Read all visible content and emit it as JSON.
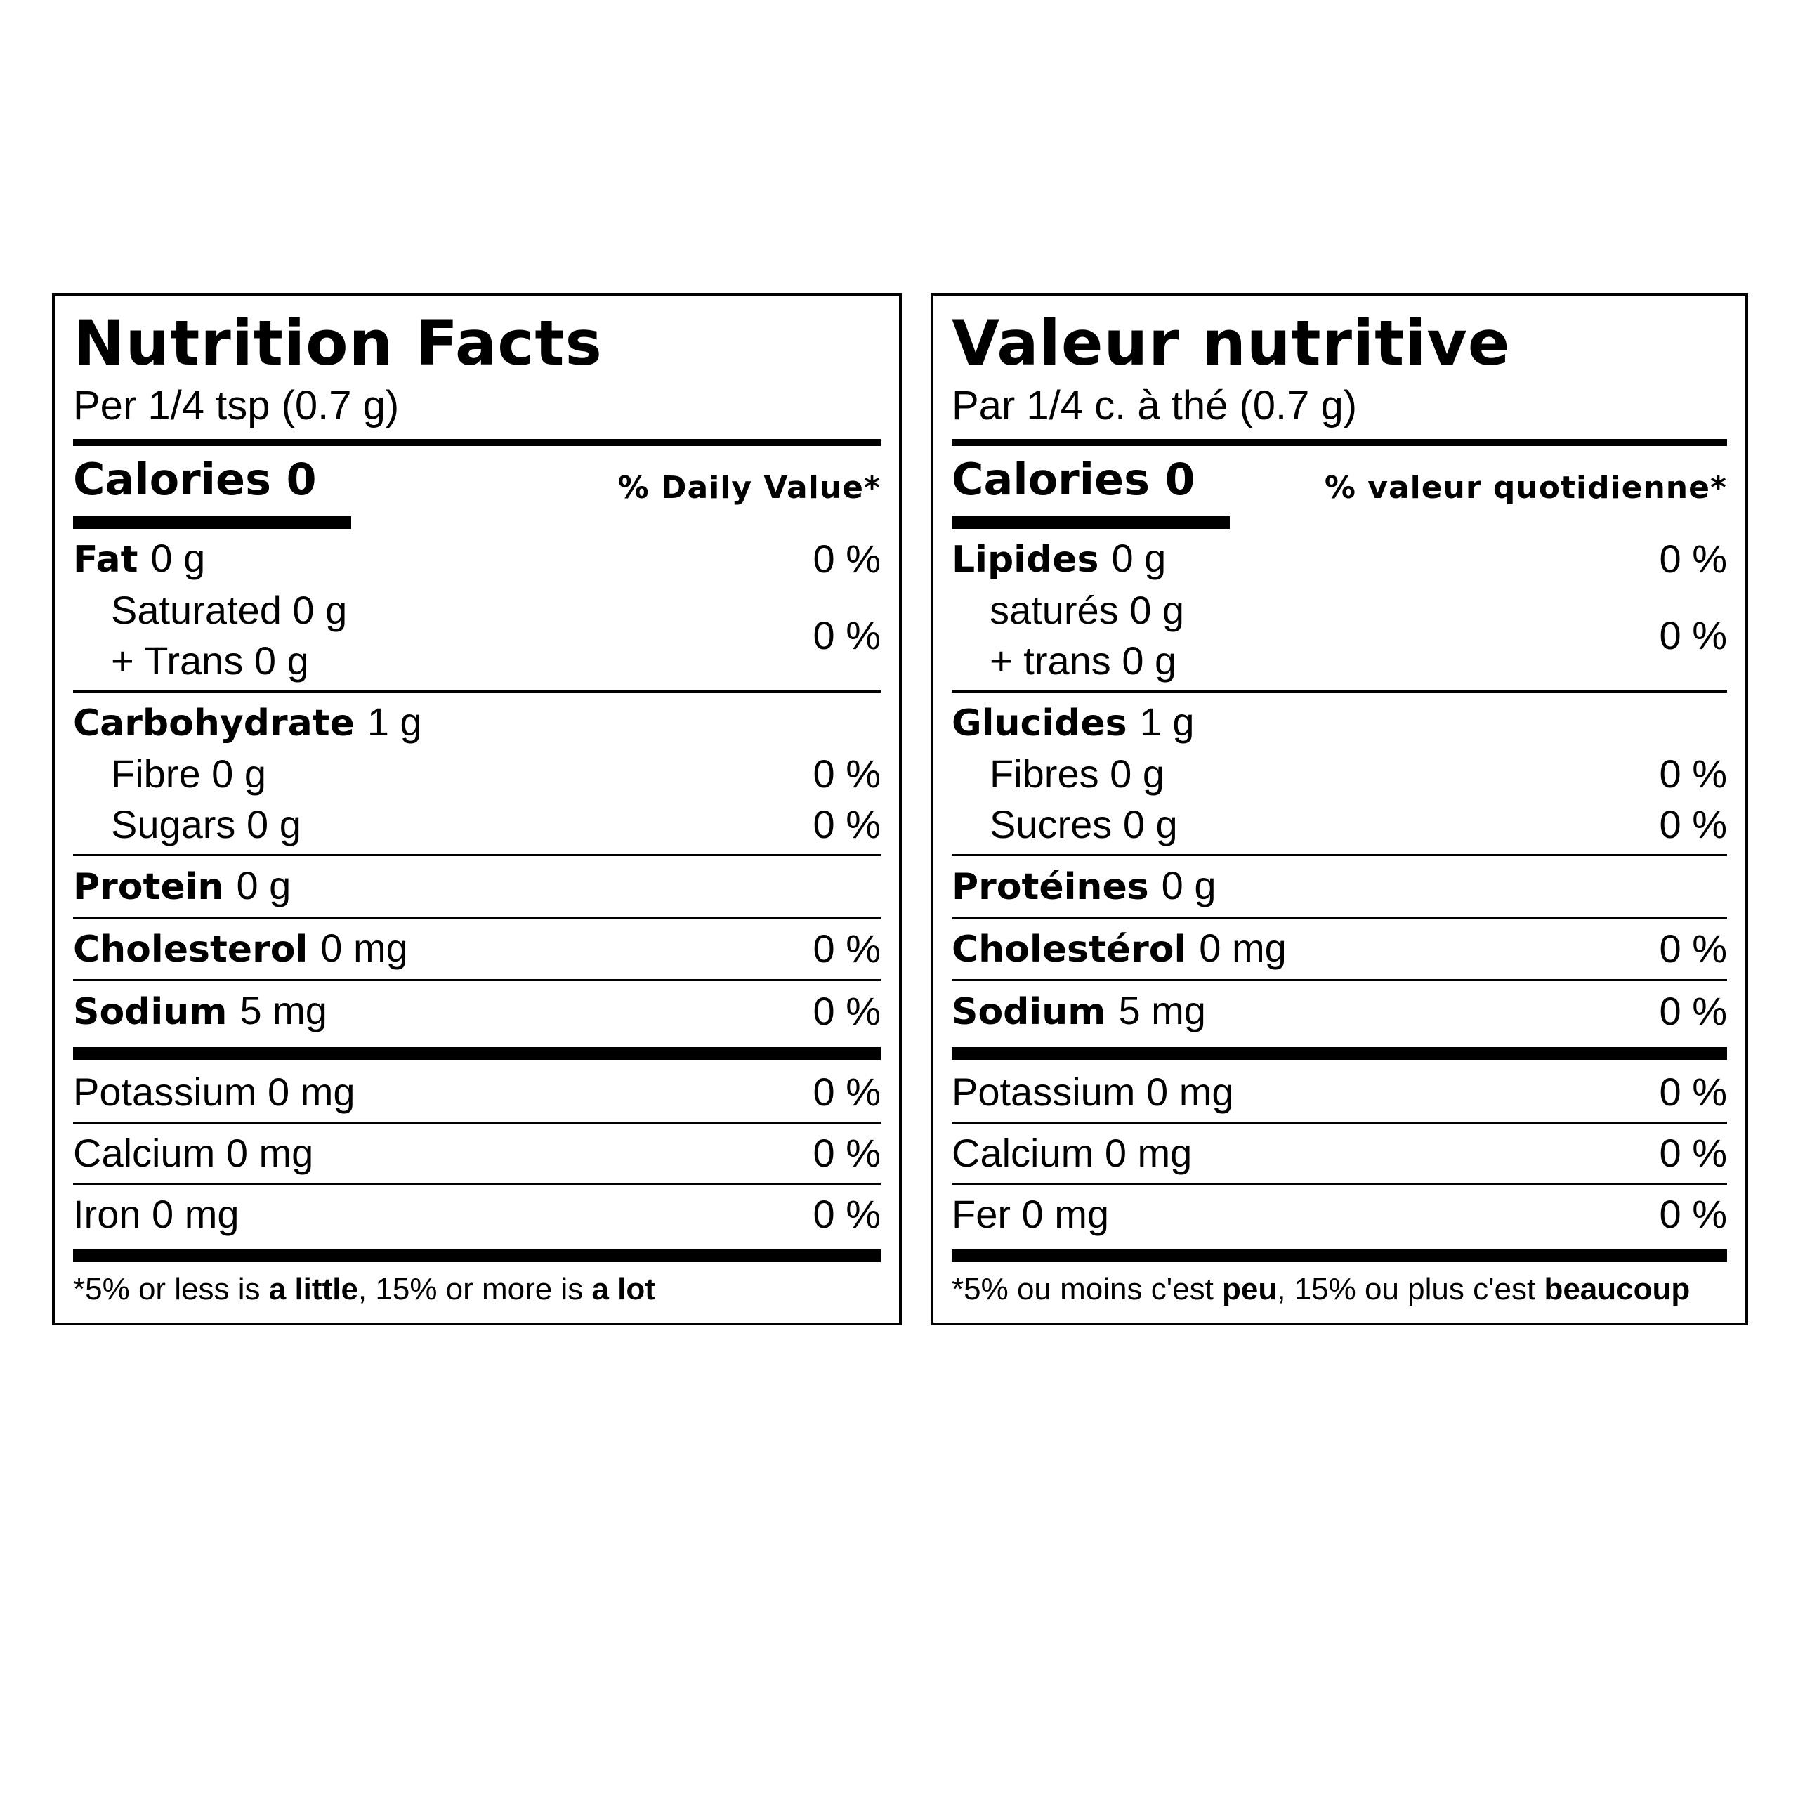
{
  "panels": [
    {
      "title": "Nutrition Facts",
      "serving": "Per 1/4 tsp (0.7 g)",
      "calories": "Calories 0",
      "dv_header": "% Daily Value*",
      "sections": [
        [
          {
            "nutrient": "Fat",
            "amount": "0 g",
            "dv": "0 %"
          },
          {
            "sub": [
              "Saturated 0 g",
              "+ Trans 0 g"
            ],
            "dv": "0 %"
          }
        ],
        [
          {
            "nutrient": "Carbohydrate",
            "amount": "1 g"
          },
          {
            "sub": [
              "Fibre 0 g"
            ],
            "dv": "0 %"
          },
          {
            "sub": [
              "Sugars 0 g"
            ],
            "dv": "0 %"
          }
        ],
        [
          {
            "nutrient": "Protein",
            "amount": "0 g"
          }
        ],
        [
          {
            "nutrient": "Cholesterol",
            "amount": "0 mg",
            "dv": "0 %"
          }
        ],
        [
          {
            "nutrient": "Sodium",
            "amount": "5 mg",
            "dv": "0 %"
          }
        ]
      ],
      "minerals": [
        {
          "text": "Potassium 0 mg",
          "dv": "0 %"
        },
        {
          "text": "Calcium 0 mg",
          "dv": "0 %"
        },
        {
          "text": "Iron 0 mg",
          "dv": "0 %"
        }
      ],
      "footnote": [
        "*5% or less is ",
        "a little",
        ", 15% or more is ",
        "a lot"
      ]
    },
    {
      "title": "Valeur nutritive",
      "serving": "Par 1/4 c. à thé (0.7 g)",
      "calories": "Calories 0",
      "dv_header": "% valeur quotidienne*",
      "sections": [
        [
          {
            "nutrient": "Lipides",
            "amount": "0 g",
            "dv": "0 %"
          },
          {
            "sub": [
              "saturés 0 g",
              "+ trans 0 g"
            ],
            "dv": "0 %"
          }
        ],
        [
          {
            "nutrient": "Glucides",
            "amount": "1 g"
          },
          {
            "sub": [
              "Fibres 0 g"
            ],
            "dv": "0 %"
          },
          {
            "sub": [
              "Sucres 0 g"
            ],
            "dv": "0 %"
          }
        ],
        [
          {
            "nutrient": "Protéines",
            "amount": "0 g"
          }
        ],
        [
          {
            "nutrient": "Cholestérol",
            "amount": "0 mg",
            "dv": "0 %"
          }
        ],
        [
          {
            "nutrient": "Sodium",
            "amount": "5 mg",
            "dv": "0 %"
          }
        ]
      ],
      "minerals": [
        {
          "text": "Potassium 0 mg",
          "dv": "0 %"
        },
        {
          "text": "Calcium 0 mg",
          "dv": "0 %"
        },
        {
          "text": "Fer 0 mg",
          "dv": "0 %"
        }
      ],
      "footnote": [
        "*5% ou moins c'est ",
        "peu",
        ", 15% ou plus c'est ",
        "beaucoup"
      ]
    }
  ]
}
